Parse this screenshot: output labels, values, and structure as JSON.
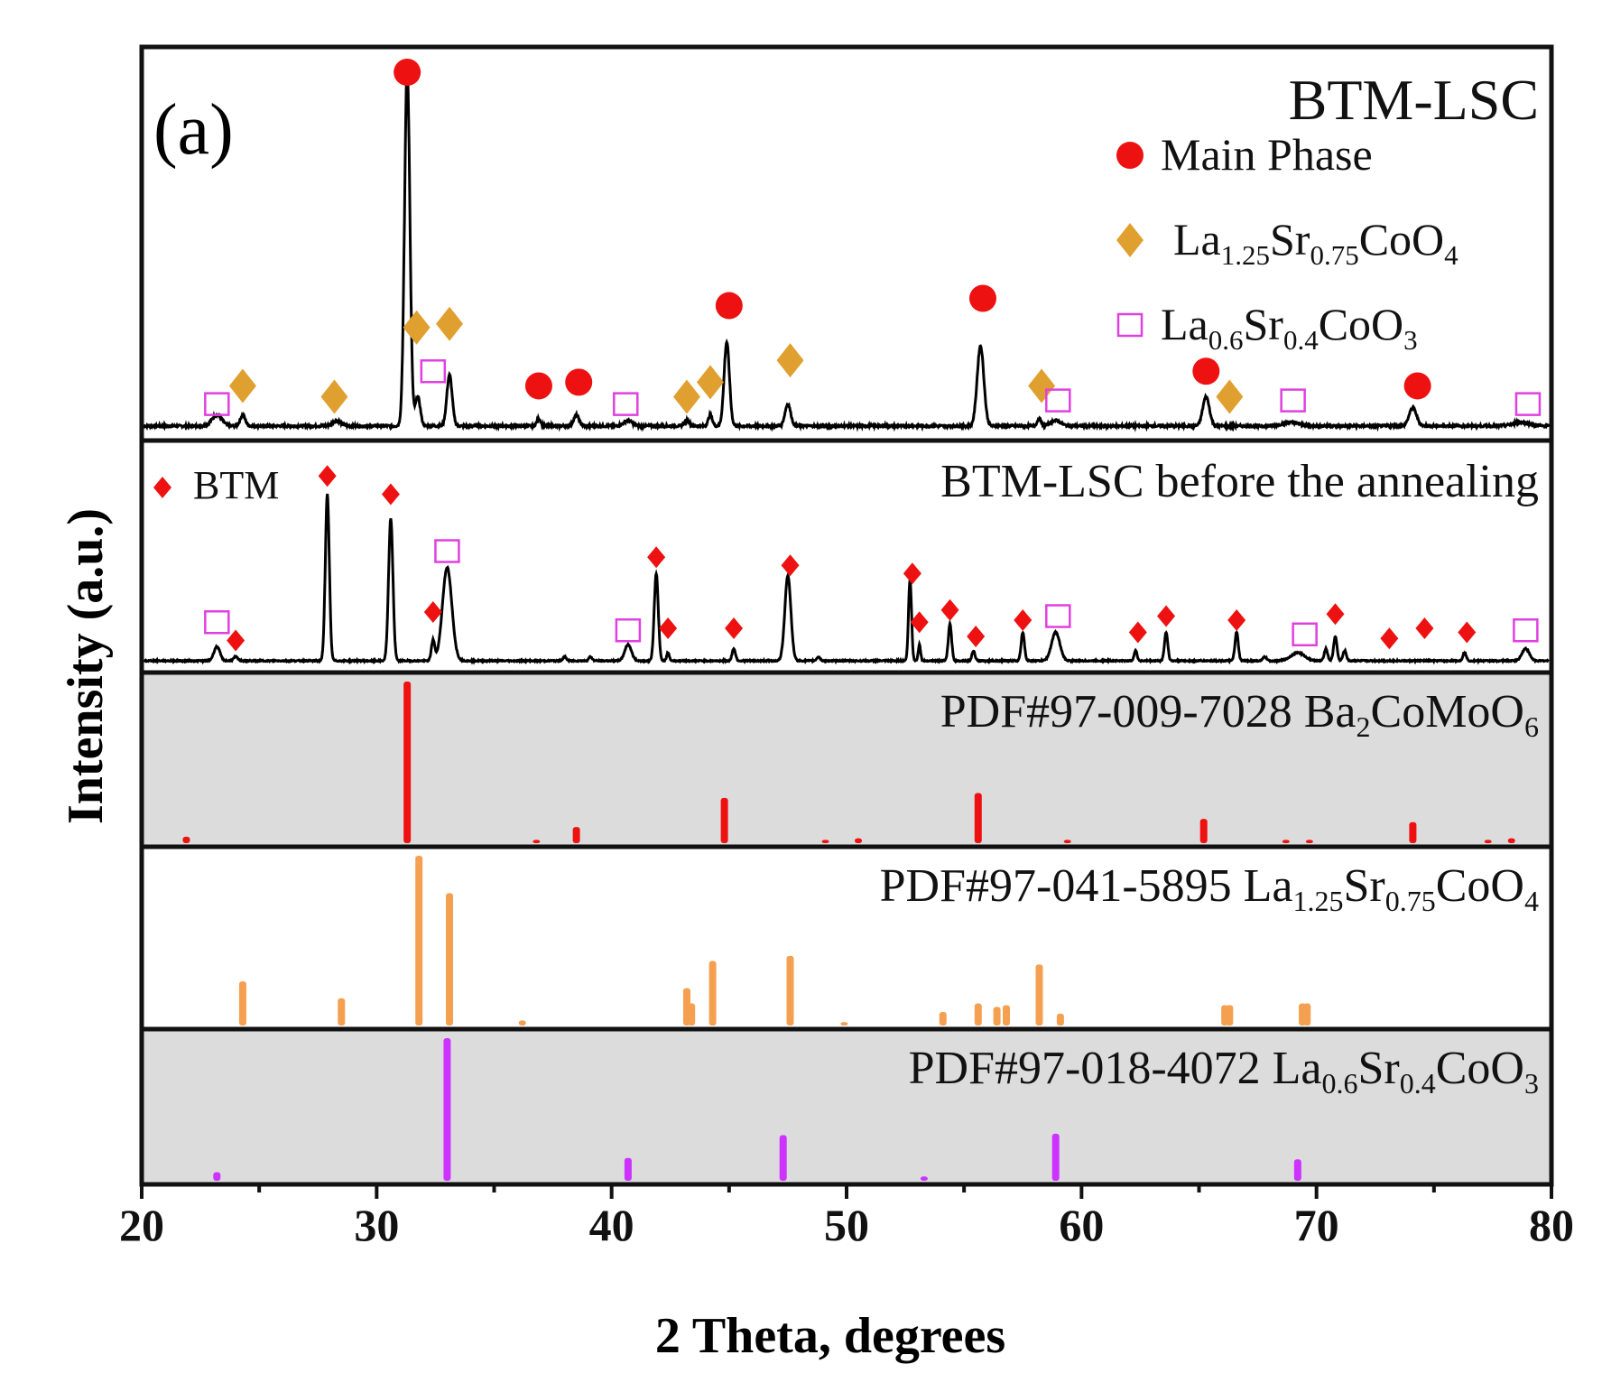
{
  "chart_data": {
    "type": "line",
    "panel_label": "(a)",
    "xlabel": "2 Theta, degrees",
    "ylabel": "Intensity (a.u.)",
    "xlim": [
      20,
      80
    ],
    "xticks": [
      20,
      30,
      40,
      50,
      60,
      70,
      80
    ],
    "colors": {
      "pattern": "#000000",
      "main_phase": "#ee1111",
      "ruddlesden": "#e0a030",
      "perovskite": "#e040e0",
      "btm": "#ee1111",
      "ref_ba2comoo6": "#ee1111",
      "ref_la125": "#f5a050",
      "ref_la06": "#cc33ff",
      "shaded": "#dcdcdc"
    },
    "panels": [
      {
        "id": "btm-lsc",
        "title": "BTM-LSC",
        "type": "pattern",
        "baseline": 0.03,
        "noise": 0.006,
        "peaks": [
          {
            "x": 23.2,
            "h": 0.03,
            "w": 0.3
          },
          {
            "x": 24.3,
            "h": 0.03,
            "w": 0.15
          },
          {
            "x": 28.3,
            "h": 0.015,
            "w": 0.25
          },
          {
            "x": 31.3,
            "h": 0.98,
            "w": 0.16
          },
          {
            "x": 31.75,
            "h": 0.08,
            "w": 0.15
          },
          {
            "x": 33.1,
            "h": 0.14,
            "w": 0.16
          },
          {
            "x": 36.9,
            "h": 0.02,
            "w": 0.12
          },
          {
            "x": 38.5,
            "h": 0.03,
            "w": 0.16
          },
          {
            "x": 40.7,
            "h": 0.015,
            "w": 0.25
          },
          {
            "x": 43.2,
            "h": 0.015,
            "w": 0.15
          },
          {
            "x": 44.2,
            "h": 0.03,
            "w": 0.12
          },
          {
            "x": 44.9,
            "h": 0.23,
            "w": 0.16
          },
          {
            "x": 47.5,
            "h": 0.06,
            "w": 0.17
          },
          {
            "x": 55.7,
            "h": 0.22,
            "w": 0.2
          },
          {
            "x": 58.2,
            "h": 0.02,
            "w": 0.12
          },
          {
            "x": 58.9,
            "h": 0.015,
            "w": 0.3
          },
          {
            "x": 65.3,
            "h": 0.08,
            "w": 0.2
          },
          {
            "x": 68.9,
            "h": 0.01,
            "w": 0.5
          },
          {
            "x": 74.1,
            "h": 0.05,
            "w": 0.22
          },
          {
            "x": 78.7,
            "h": 0.01,
            "w": 0.5
          }
        ],
        "markers": [
          {
            "x": 31.3,
            "y": 1.0,
            "kind": "main"
          },
          {
            "x": 36.9,
            "y": 0.14,
            "kind": "main"
          },
          {
            "x": 38.6,
            "y": 0.15,
            "kind": "main"
          },
          {
            "x": 45.0,
            "y": 0.36,
            "kind": "main"
          },
          {
            "x": 55.8,
            "y": 0.38,
            "kind": "main"
          },
          {
            "x": 65.3,
            "y": 0.18,
            "kind": "main"
          },
          {
            "x": 74.3,
            "y": 0.14,
            "kind": "main"
          },
          {
            "x": 24.3,
            "y": 0.14,
            "kind": "rp"
          },
          {
            "x": 28.2,
            "y": 0.11,
            "kind": "rp"
          },
          {
            "x": 31.7,
            "y": 0.3,
            "kind": "rp"
          },
          {
            "x": 33.1,
            "y": 0.31,
            "kind": "rp"
          },
          {
            "x": 43.2,
            "y": 0.11,
            "kind": "rp"
          },
          {
            "x": 44.2,
            "y": 0.15,
            "kind": "rp"
          },
          {
            "x": 47.6,
            "y": 0.21,
            "kind": "rp"
          },
          {
            "x": 58.3,
            "y": 0.14,
            "kind": "rp"
          },
          {
            "x": 66.3,
            "y": 0.11,
            "kind": "rp"
          },
          {
            "x": 23.2,
            "y": 0.09,
            "kind": "lsc"
          },
          {
            "x": 32.4,
            "y": 0.18,
            "kind": "lsc"
          },
          {
            "x": 40.6,
            "y": 0.09,
            "kind": "lsc"
          },
          {
            "x": 59.0,
            "y": 0.1,
            "kind": "lsc"
          },
          {
            "x": 69.0,
            "y": 0.1,
            "kind": "lsc"
          },
          {
            "x": 79.0,
            "y": 0.09,
            "kind": "lsc"
          }
        ]
      },
      {
        "id": "btm-lsc-pre",
        "title": "BTM-LSC before the annealing",
        "type": "pattern",
        "baseline": 0.04,
        "noise": 0.006,
        "peaks": [
          {
            "x": 23.2,
            "h": 0.07,
            "w": 0.18
          },
          {
            "x": 24.0,
            "h": 0.02,
            "w": 0.12
          },
          {
            "x": 27.9,
            "h": 0.82,
            "w": 0.12
          },
          {
            "x": 30.6,
            "h": 0.7,
            "w": 0.13
          },
          {
            "x": 32.4,
            "h": 0.1,
            "w": 0.1
          },
          {
            "x": 33.0,
            "h": 0.46,
            "w": 0.28
          },
          {
            "x": 38.0,
            "h": 0.02,
            "w": 0.1
          },
          {
            "x": 39.1,
            "h": 0.02,
            "w": 0.1
          },
          {
            "x": 40.7,
            "h": 0.08,
            "w": 0.2
          },
          {
            "x": 41.9,
            "h": 0.43,
            "w": 0.12
          },
          {
            "x": 42.4,
            "h": 0.04,
            "w": 0.08
          },
          {
            "x": 45.2,
            "h": 0.06,
            "w": 0.1
          },
          {
            "x": 47.5,
            "h": 0.42,
            "w": 0.18
          },
          {
            "x": 48.8,
            "h": 0.02,
            "w": 0.1
          },
          {
            "x": 52.7,
            "h": 0.4,
            "w": 0.09
          },
          {
            "x": 53.1,
            "h": 0.08,
            "w": 0.07
          },
          {
            "x": 54.4,
            "h": 0.18,
            "w": 0.1
          },
          {
            "x": 55.4,
            "h": 0.05,
            "w": 0.09
          },
          {
            "x": 57.5,
            "h": 0.14,
            "w": 0.1
          },
          {
            "x": 58.9,
            "h": 0.14,
            "w": 0.25
          },
          {
            "x": 62.3,
            "h": 0.05,
            "w": 0.09
          },
          {
            "x": 63.6,
            "h": 0.14,
            "w": 0.1
          },
          {
            "x": 66.6,
            "h": 0.14,
            "w": 0.1
          },
          {
            "x": 67.8,
            "h": 0.02,
            "w": 0.1
          },
          {
            "x": 69.2,
            "h": 0.04,
            "w": 0.4
          },
          {
            "x": 70.4,
            "h": 0.06,
            "w": 0.1
          },
          {
            "x": 70.8,
            "h": 0.12,
            "w": 0.1
          },
          {
            "x": 71.2,
            "h": 0.05,
            "w": 0.1
          },
          {
            "x": 76.3,
            "h": 0.04,
            "w": 0.1
          },
          {
            "x": 78.9,
            "h": 0.06,
            "w": 0.22
          }
        ],
        "markers": [
          {
            "x": 27.9,
            "y": 0.95,
            "kind": "btm"
          },
          {
            "x": 30.6,
            "y": 0.86,
            "kind": "btm"
          },
          {
            "x": 24.0,
            "y": 0.14,
            "kind": "btm"
          },
          {
            "x": 32.4,
            "y": 0.28,
            "kind": "btm"
          },
          {
            "x": 41.9,
            "y": 0.55,
            "kind": "btm"
          },
          {
            "x": 42.4,
            "y": 0.2,
            "kind": "btm"
          },
          {
            "x": 45.2,
            "y": 0.2,
            "kind": "btm"
          },
          {
            "x": 47.6,
            "y": 0.51,
            "kind": "btm"
          },
          {
            "x": 52.8,
            "y": 0.47,
            "kind": "btm"
          },
          {
            "x": 53.1,
            "y": 0.23,
            "kind": "btm"
          },
          {
            "x": 54.4,
            "y": 0.29,
            "kind": "btm"
          },
          {
            "x": 55.5,
            "y": 0.16,
            "kind": "btm"
          },
          {
            "x": 57.5,
            "y": 0.24,
            "kind": "btm"
          },
          {
            "x": 62.4,
            "y": 0.18,
            "kind": "btm"
          },
          {
            "x": 63.6,
            "y": 0.26,
            "kind": "btm"
          },
          {
            "x": 66.6,
            "y": 0.24,
            "kind": "btm"
          },
          {
            "x": 70.8,
            "y": 0.27,
            "kind": "btm"
          },
          {
            "x": 73.1,
            "y": 0.15,
            "kind": "btm"
          },
          {
            "x": 74.6,
            "y": 0.2,
            "kind": "btm"
          },
          {
            "x": 76.4,
            "y": 0.18,
            "kind": "btm"
          },
          {
            "x": 23.2,
            "y": 0.23,
            "kind": "lsc"
          },
          {
            "x": 33.0,
            "y": 0.58,
            "kind": "lsc"
          },
          {
            "x": 40.7,
            "y": 0.19,
            "kind": "lsc"
          },
          {
            "x": 59.0,
            "y": 0.26,
            "kind": "lsc"
          },
          {
            "x": 69.5,
            "y": 0.17,
            "kind": "lsc"
          },
          {
            "x": 78.9,
            "y": 0.19,
            "kind": "lsc"
          }
        ]
      },
      {
        "id": "ref-ba2comoo6",
        "type": "reference",
        "title_main": "PDF#97-009-7028 Ba",
        "title_parts": [
          [
            "PDF#97-009-7028 Ba",
            "n"
          ],
          [
            "2",
            "s"
          ],
          [
            "CoMoO",
            "n"
          ],
          [
            "6",
            "s"
          ]
        ],
        "shaded": true,
        "color_key": "ref_ba2comoo6",
        "sticks": [
          {
            "x": 21.9,
            "h": 0.04
          },
          {
            "x": 31.3,
            "h": 1.0
          },
          {
            "x": 36.8,
            "h": 0.02
          },
          {
            "x": 38.5,
            "h": 0.1
          },
          {
            "x": 44.8,
            "h": 0.28
          },
          {
            "x": 49.1,
            "h": 0.02
          },
          {
            "x": 50.5,
            "h": 0.03
          },
          {
            "x": 55.6,
            "h": 0.31
          },
          {
            "x": 59.4,
            "h": 0.02
          },
          {
            "x": 65.2,
            "h": 0.15
          },
          {
            "x": 68.7,
            "h": 0.02
          },
          {
            "x": 69.7,
            "h": 0.02
          },
          {
            "x": 74.1,
            "h": 0.13
          },
          {
            "x": 77.3,
            "h": 0.02
          },
          {
            "x": 78.3,
            "h": 0.03
          }
        ]
      },
      {
        "id": "ref-la125",
        "type": "reference",
        "title_parts": [
          [
            "PDF#97-041-5895 La",
            "n"
          ],
          [
            "1.25",
            "s"
          ],
          [
            "Sr",
            "n"
          ],
          [
            "0.75",
            "s"
          ],
          [
            "CoO",
            "n"
          ],
          [
            "4",
            "s"
          ]
        ],
        "shaded": false,
        "color_key": "ref_la125",
        "sticks": [
          {
            "x": 24.3,
            "h": 0.26
          },
          {
            "x": 28.5,
            "h": 0.16
          },
          {
            "x": 31.8,
            "h": 1.0
          },
          {
            "x": 33.1,
            "h": 0.78
          },
          {
            "x": 36.2,
            "h": 0.03
          },
          {
            "x": 43.2,
            "h": 0.22
          },
          {
            "x": 43.4,
            "h": 0.13
          },
          {
            "x": 44.3,
            "h": 0.38
          },
          {
            "x": 47.6,
            "h": 0.41
          },
          {
            "x": 49.9,
            "h": 0.02
          },
          {
            "x": 54.1,
            "h": 0.08
          },
          {
            "x": 55.6,
            "h": 0.13
          },
          {
            "x": 56.4,
            "h": 0.11
          },
          {
            "x": 56.8,
            "h": 0.12
          },
          {
            "x": 58.2,
            "h": 0.36
          },
          {
            "x": 59.1,
            "h": 0.07
          },
          {
            "x": 66.1,
            "h": 0.12
          },
          {
            "x": 66.3,
            "h": 0.12
          },
          {
            "x": 69.4,
            "h": 0.13
          },
          {
            "x": 69.6,
            "h": 0.13
          }
        ]
      },
      {
        "id": "ref-la06",
        "type": "reference",
        "title_parts": [
          [
            "PDF#97-018-4072 La",
            "n"
          ],
          [
            "0.6",
            "s"
          ],
          [
            "Sr",
            "n"
          ],
          [
            "0.4",
            "s"
          ],
          [
            "CoO",
            "n"
          ],
          [
            "3",
            "s"
          ]
        ],
        "shaded": true,
        "color_key": "ref_la06",
        "sticks": [
          {
            "x": 23.2,
            "h": 0.06
          },
          {
            "x": 33.0,
            "h": 1.0
          },
          {
            "x": 40.7,
            "h": 0.16
          },
          {
            "x": 47.3,
            "h": 0.32
          },
          {
            "x": 53.3,
            "h": 0.03
          },
          {
            "x": 58.9,
            "h": 0.33
          },
          {
            "x": 69.2,
            "h": 0.15
          }
        ]
      }
    ],
    "legend": [
      {
        "kind": "main",
        "parts": [
          [
            "Main Phase",
            "n"
          ]
        ]
      },
      {
        "kind": "rp",
        "parts": [
          [
            "La",
            "n"
          ],
          [
            "1.25",
            "s"
          ],
          [
            "Sr",
            "n"
          ],
          [
            "0.75",
            "s"
          ],
          [
            "CoO",
            "n"
          ],
          [
            "4",
            "s"
          ]
        ]
      },
      {
        "kind": "lsc",
        "parts": [
          [
            "La",
            "n"
          ],
          [
            "0.6",
            "s"
          ],
          [
            "Sr",
            "n"
          ],
          [
            "0.4",
            "s"
          ],
          [
            "CoO",
            "n"
          ],
          [
            "3",
            "s"
          ]
        ]
      }
    ],
    "legend_panel2": {
      "kind": "btm",
      "label": "BTM"
    }
  }
}
